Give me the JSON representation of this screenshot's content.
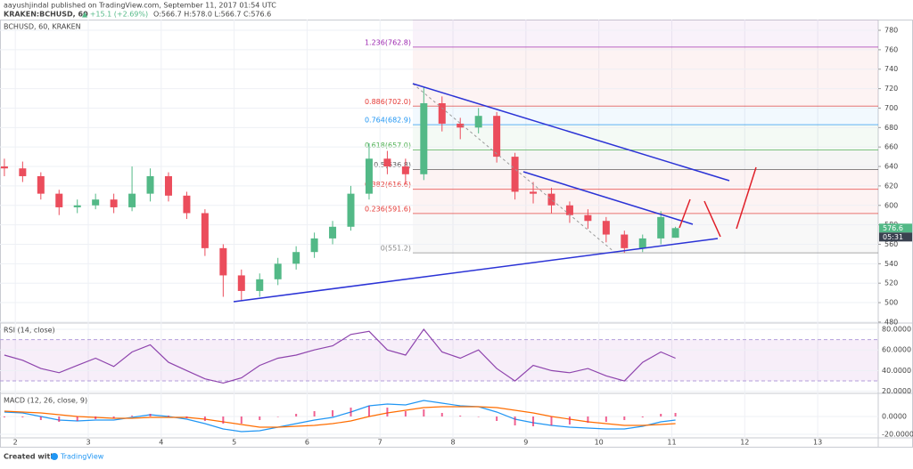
{
  "header": {
    "title": "aayushjindal published on TradingView.com, September 11, 2017 01:54 UTC",
    "symbol": "KRAKEN:BCHUSD, 60",
    "change": "▲ +15.1 (+2.69%)",
    "ohlc": "O:566.7 H:578.0 L:566.7 C:576.6"
  },
  "footer": {
    "created": "Created with",
    "brand": "TradingView"
  },
  "chart_data": [
    {
      "type": "candlestick",
      "title": "BCHUSD, 60, KRAKEN",
      "x": [
        1.85,
        2.1,
        2.35,
        2.6,
        2.85,
        3.1,
        3.35,
        3.6,
        3.85,
        4.1,
        4.35,
        4.6,
        4.85,
        5.1,
        5.35,
        5.6,
        5.85,
        6.1,
        6.35,
        6.6,
        6.85,
        7.1,
        7.35,
        7.6,
        7.85,
        8.1,
        8.35,
        8.6,
        8.85,
        9.1,
        9.35,
        9.6,
        9.85,
        10.1,
        10.35,
        10.6,
        10.85,
        11.05
      ],
      "open": [
        640,
        638,
        630,
        612,
        598,
        600,
        606,
        598,
        612,
        630,
        610,
        592,
        556,
        528,
        512,
        524,
        540,
        552,
        566,
        578,
        612,
        648,
        640,
        632,
        705,
        684,
        680,
        692,
        650,
        614,
        612,
        600,
        590,
        584,
        570,
        556,
        566,
        566.7
      ],
      "high": [
        648,
        645,
        634,
        616,
        606,
        612,
        612,
        640,
        638,
        634,
        614,
        596,
        560,
        534,
        530,
        546,
        558,
        572,
        584,
        620,
        664,
        656,
        648,
        722,
        712,
        690,
        700,
        696,
        654,
        624,
        618,
        604,
        596,
        588,
        574,
        570,
        594,
        578
      ],
      "low": [
        630,
        624,
        606,
        590,
        592,
        596,
        592,
        594,
        604,
        604,
        586,
        548,
        506,
        502,
        506,
        518,
        534,
        546,
        560,
        574,
        606,
        632,
        622,
        626,
        676,
        668,
        674,
        644,
        606,
        602,
        592,
        582,
        576,
        562,
        551.2,
        552,
        560,
        566.7
      ],
      "close": [
        638,
        630,
        612,
        598,
        600,
        606,
        598,
        612,
        630,
        610,
        592,
        556,
        528,
        512,
        524,
        540,
        552,
        566,
        578,
        612,
        648,
        640,
        632,
        705,
        684,
        680,
        692,
        650,
        614,
        612,
        600,
        590,
        584,
        570,
        556,
        566,
        588,
        576.6
      ],
      "up_color": "#53b987",
      "down_color": "#eb4d5c",
      "xlim": [
        1.79,
        13.83
      ],
      "xticks": [
        2,
        3,
        4,
        5,
        6,
        7,
        8,
        9,
        10,
        11,
        12,
        13
      ],
      "ylim": [
        479,
        791
      ],
      "yticks": [
        480,
        500,
        520,
        540,
        560,
        580,
        600,
        620,
        640,
        660,
        680,
        700,
        720,
        740,
        760,
        780
      ],
      "grid": true,
      "fib_levels": [
        {
          "value": 762.8,
          "label": "1.236(762.8)",
          "color": "#9c27b0"
        },
        {
          "value": 702.0,
          "label": "0.886(702.0)",
          "color": "#e53935"
        },
        {
          "value": 682.9,
          "label": "0.764(682.9)",
          "color": "#2196f3"
        },
        {
          "value": 657.0,
          "label": "0.618(657.0)",
          "color": "#4caf50"
        },
        {
          "value": 636.8,
          "label": "0.5(636.8)",
          "color": "#555555"
        },
        {
          "value": 616.6,
          "label": "0.382(616.6)",
          "color": "#e53935"
        },
        {
          "value": 591.6,
          "label": "0.236(591.6)",
          "color": "#e53935"
        },
        {
          "value": 551.2,
          "label": "0(551.2)",
          "color": "#888888"
        }
      ],
      "last_price": 576.6,
      "countdown": "05:31"
    },
    {
      "type": "line",
      "title": "RSI (14, close)",
      "series": [
        {
          "name": "RSI",
          "color": "#8e44ad",
          "values": [
            55,
            50,
            42,
            38,
            45,
            52,
            44,
            58,
            65,
            48,
            40,
            32,
            28,
            33,
            45,
            52,
            55,
            60,
            64,
            75,
            78,
            60,
            55,
            80,
            58,
            52,
            60,
            42,
            30,
            45,
            40,
            38,
            42,
            35,
            30,
            48,
            58,
            52
          ]
        }
      ],
      "band": [
        30,
        70
      ],
      "ylim": [
        18,
        86
      ],
      "yticks": [
        {
          "value": 80,
          "label": "80.0000"
        },
        {
          "value": 60,
          "label": "60.0000"
        },
        {
          "value": 40,
          "label": "40.0000"
        },
        {
          "value": 20,
          "label": "20.0000"
        }
      ]
    },
    {
      "type": "macd",
      "title": "MACD (12, 26, close, 9)",
      "series": [
        {
          "name": "MACD",
          "color": "#2196f3",
          "values": [
            5,
            4,
            0,
            -4,
            -5,
            -4,
            -4,
            -1,
            2,
            0,
            -3,
            -8,
            -14,
            -17,
            -16,
            -12,
            -8,
            -4,
            -1,
            5,
            12,
            14,
            13,
            18,
            15,
            12,
            11,
            5,
            -3,
            -7,
            -10,
            -12,
            -13,
            -14,
            -14,
            -11,
            -6,
            -4
          ]
        },
        {
          "name": "Signal",
          "color": "#ff6d00",
          "values": [
            6,
            5,
            4,
            2,
            0,
            -1,
            -2,
            -2,
            -1,
            -1,
            -1,
            -3,
            -6,
            -9,
            -12,
            -12,
            -11,
            -10,
            -8,
            -5,
            0,
            4,
            7,
            10,
            11,
            11,
            11,
            10,
            7,
            4,
            0,
            -3,
            -6,
            -8,
            -10,
            -10,
            -9,
            -8
          ]
        },
        {
          "name": "Histogram",
          "color": "#e91e63",
          "values": [
            -1,
            -1,
            -4,
            -6,
            -5,
            -3,
            -2,
            1,
            3,
            1,
            -2,
            -5,
            -8,
            -8,
            -4,
            0,
            3,
            6,
            7,
            10,
            12,
            10,
            6,
            8,
            4,
            1,
            0,
            -5,
            -10,
            -11,
            -10,
            -9,
            -7,
            -6,
            -4,
            -1,
            3,
            4
          ]
        }
      ],
      "ylim": [
        -24,
        26
      ],
      "yticks": [
        {
          "value": 0,
          "label": "0.0000"
        },
        {
          "value": -20,
          "label": "-20.0000"
        }
      ]
    }
  ]
}
